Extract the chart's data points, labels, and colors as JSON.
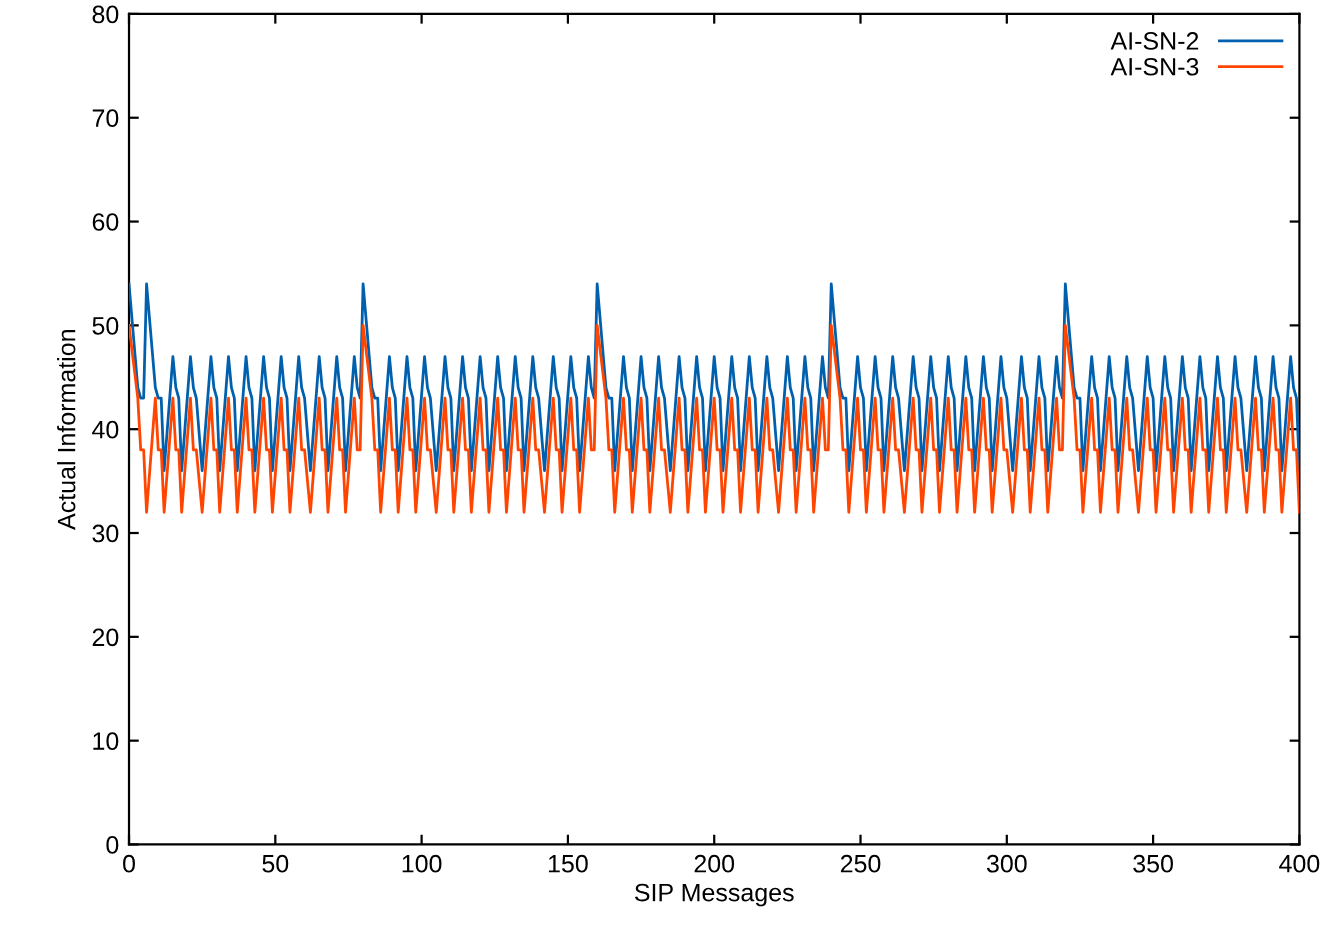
{
  "chart_data": {
    "type": "line",
    "xlabel": "SIP Messages",
    "ylabel": "Actual Information",
    "x": [
      0,
      3,
      4,
      5,
      6,
      9,
      10,
      11,
      12,
      15,
      16,
      17,
      18,
      21,
      22,
      23,
      25,
      28,
      29,
      30,
      31,
      34,
      35,
      36,
      37,
      40,
      41,
      42,
      43,
      46,
      47,
      48,
      49,
      52,
      53,
      54,
      55,
      58,
      59,
      60,
      62,
      65,
      66,
      67,
      68,
      71,
      72,
      73,
      74,
      77,
      78,
      79,
      80,
      83,
      84,
      85,
      86,
      89,
      90,
      91,
      92,
      95,
      96,
      97,
      98,
      101,
      102,
      103,
      105,
      108,
      109,
      110,
      111,
      114,
      115,
      116,
      117,
      120,
      121,
      122,
      123,
      126,
      127,
      128,
      129,
      132,
      133,
      134,
      135,
      138,
      139,
      140,
      142,
      145,
      146,
      147,
      148,
      151,
      152,
      153,
      154,
      157,
      158,
      159,
      160,
      163,
      164,
      165,
      166,
      169,
      170,
      171,
      172,
      175,
      176,
      177,
      178,
      181,
      182,
      183,
      185,
      188,
      189,
      190,
      191,
      194,
      195,
      196,
      197,
      200,
      201,
      202,
      203,
      206,
      207,
      208,
      209,
      212,
      213,
      214,
      215,
      218,
      219,
      220,
      222,
      225,
      226,
      227,
      228,
      231,
      232,
      233,
      234,
      237,
      238,
      239,
      240,
      243,
      244,
      245,
      246,
      249,
      250,
      251,
      252,
      255,
      256,
      257,
      258,
      261,
      262,
      263,
      265,
      268,
      269,
      270,
      271,
      274,
      275,
      276,
      277,
      280,
      281,
      282,
      283,
      286,
      287,
      288,
      289,
      292,
      293,
      294,
      295,
      298,
      299,
      300,
      302,
      305,
      306,
      307,
      308,
      311,
      312,
      313,
      314,
      317,
      318,
      319,
      320,
      323,
      324,
      325,
      326,
      329,
      330,
      331,
      332,
      335,
      336,
      337,
      338,
      341,
      342,
      343,
      345,
      348,
      349,
      350,
      351,
      354,
      355,
      356,
      357,
      360,
      361,
      362,
      363,
      366,
      367,
      368,
      369,
      372,
      373,
      374,
      375,
      378,
      379,
      380,
      382,
      385,
      386,
      387,
      388,
      391,
      392,
      393,
      394,
      397,
      398,
      399,
      400
    ],
    "series": [
      {
        "name": "AI-SN-2",
        "color": "#0060ad",
        "values": [
          54,
          44,
          43,
          43,
          54,
          44,
          43,
          43,
          36,
          47,
          44,
          43,
          36,
          47,
          44,
          43,
          36,
          47,
          44,
          43,
          36,
          47,
          44,
          43,
          36,
          47,
          44,
          43,
          36,
          47,
          44,
          43,
          36,
          47,
          44,
          43,
          36,
          47,
          44,
          43,
          36,
          47,
          44,
          43,
          36,
          47,
          44,
          43,
          36,
          47,
          44,
          43,
          54,
          44,
          43,
          43,
          36,
          47,
          44,
          43,
          36,
          47,
          44,
          43,
          36,
          47,
          44,
          43,
          36,
          47,
          44,
          43,
          36,
          47,
          44,
          43,
          36,
          47,
          44,
          43,
          36,
          47,
          44,
          43,
          36,
          47,
          44,
          43,
          36,
          47,
          44,
          43,
          36,
          47,
          44,
          43,
          36,
          47,
          44,
          43,
          36,
          47,
          44,
          43,
          54,
          44,
          43,
          43,
          36,
          47,
          44,
          43,
          36,
          47,
          44,
          43,
          36,
          47,
          44,
          43,
          36,
          47,
          44,
          43,
          36,
          47,
          44,
          43,
          36,
          47,
          44,
          43,
          36,
          47,
          44,
          43,
          36,
          47,
          44,
          43,
          36,
          47,
          44,
          43,
          36,
          47,
          44,
          43,
          36,
          47,
          44,
          43,
          36,
          47,
          44,
          43,
          54,
          44,
          43,
          43,
          36,
          47,
          44,
          43,
          36,
          47,
          44,
          43,
          36,
          47,
          44,
          43,
          36,
          47,
          44,
          43,
          36,
          47,
          44,
          43,
          36,
          47,
          44,
          43,
          36,
          47,
          44,
          43,
          36,
          47,
          44,
          43,
          36,
          47,
          44,
          43,
          36,
          47,
          44,
          43,
          36,
          47,
          44,
          43,
          36,
          47,
          44,
          43,
          54,
          44,
          43,
          43,
          36,
          47,
          44,
          43,
          36,
          47,
          44,
          43,
          36,
          47,
          44,
          43,
          36,
          47,
          44,
          43,
          36,
          47,
          44,
          43,
          36,
          47,
          44,
          43,
          36,
          47,
          44,
          43,
          36,
          47,
          44,
          43,
          36,
          47,
          44,
          43,
          36,
          47,
          44,
          43,
          36,
          47,
          44,
          43,
          36,
          47,
          44,
          43,
          36
        ]
      },
      {
        "name": "AI-SN-3",
        "color": "#ff4500",
        "values": [
          50,
          43,
          38,
          38,
          32,
          43,
          38,
          38,
          32,
          43,
          38,
          38,
          32,
          43,
          38,
          38,
          32,
          43,
          38,
          38,
          32,
          43,
          38,
          38,
          32,
          43,
          38,
          38,
          32,
          43,
          38,
          38,
          32,
          43,
          38,
          38,
          32,
          43,
          38,
          38,
          32,
          43,
          38,
          38,
          32,
          43,
          38,
          38,
          32,
          43,
          38,
          38,
          50,
          43,
          38,
          38,
          32,
          43,
          38,
          38,
          32,
          43,
          38,
          38,
          32,
          43,
          38,
          38,
          32,
          43,
          38,
          38,
          32,
          43,
          38,
          38,
          32,
          43,
          38,
          38,
          32,
          43,
          38,
          38,
          32,
          43,
          38,
          38,
          32,
          43,
          38,
          38,
          32,
          43,
          38,
          38,
          32,
          43,
          38,
          38,
          32,
          43,
          38,
          38,
          50,
          43,
          38,
          38,
          32,
          43,
          38,
          38,
          32,
          43,
          38,
          38,
          32,
          43,
          38,
          38,
          32,
          43,
          38,
          38,
          32,
          43,
          38,
          38,
          32,
          43,
          38,
          38,
          32,
          43,
          38,
          38,
          32,
          43,
          38,
          38,
          32,
          43,
          38,
          38,
          32,
          43,
          38,
          38,
          32,
          43,
          38,
          38,
          32,
          43,
          38,
          38,
          50,
          43,
          38,
          38,
          32,
          43,
          38,
          38,
          32,
          43,
          38,
          38,
          32,
          43,
          38,
          38,
          32,
          43,
          38,
          38,
          32,
          43,
          38,
          38,
          32,
          43,
          38,
          38,
          32,
          43,
          38,
          38,
          32,
          43,
          38,
          38,
          32,
          43,
          38,
          38,
          32,
          43,
          38,
          38,
          32,
          43,
          38,
          38,
          32,
          43,
          38,
          38,
          50,
          43,
          38,
          38,
          32,
          43,
          38,
          38,
          32,
          43,
          38,
          38,
          32,
          43,
          38,
          38,
          32,
          43,
          38,
          38,
          32,
          43,
          38,
          38,
          32,
          43,
          38,
          38,
          32,
          43,
          38,
          38,
          32,
          43,
          38,
          38,
          32,
          43,
          38,
          38,
          32,
          43,
          38,
          38,
          32,
          43,
          38,
          38,
          32,
          43,
          38,
          38,
          32
        ]
      }
    ],
    "xlim": [
      0,
      400
    ],
    "xticks": [
      0,
      50,
      100,
      150,
      200,
      250,
      300,
      350,
      400
    ],
    "ylim": [
      0,
      80
    ],
    "yticks": [
      0,
      10,
      20,
      30,
      40,
      50,
      60,
      70,
      80
    ],
    "grid": false,
    "legend": "top right",
    "marker": "none",
    "line_style": "solid"
  }
}
